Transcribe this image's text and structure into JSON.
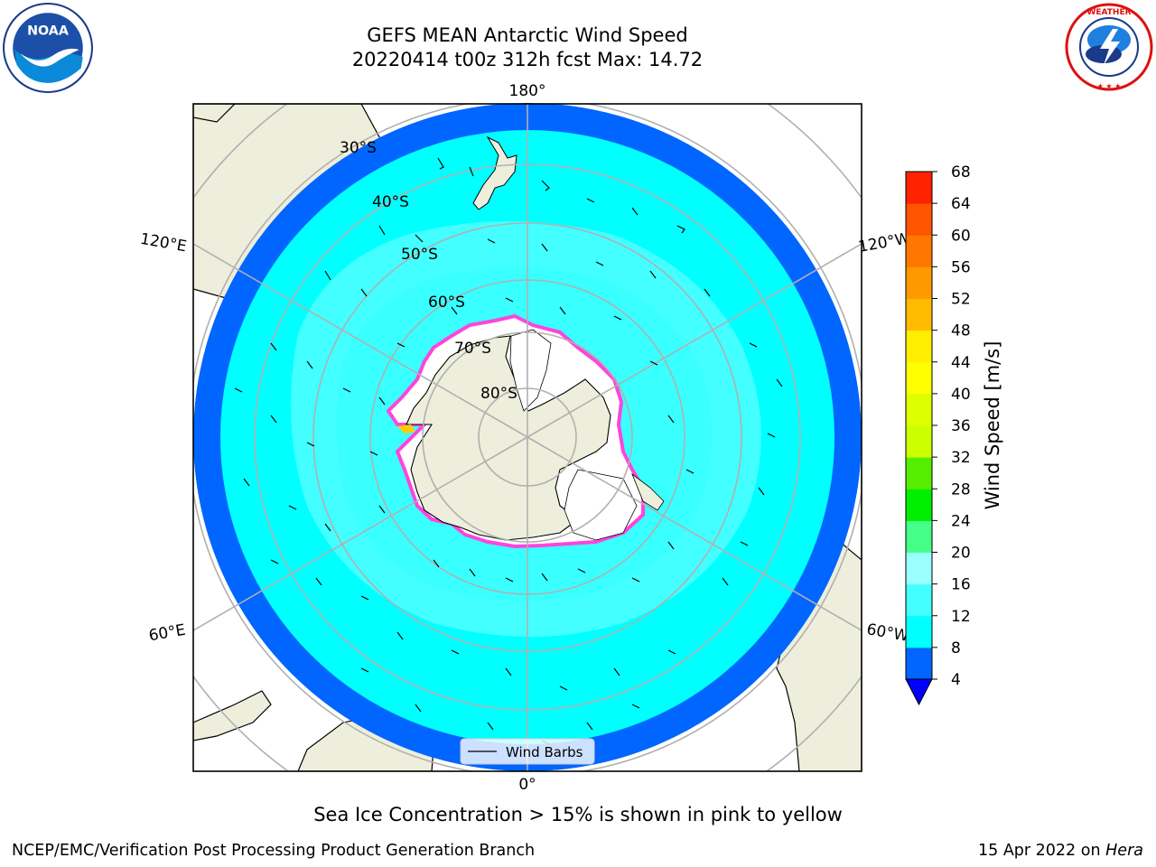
{
  "header": {
    "title_line1": "GEFS MEAN Antarctic Wind Speed",
    "title_line2": "20220414 t00z 312h fcst   Max: 14.72"
  },
  "logos": {
    "left": "noaa-logo",
    "right": "national-weather-service-logo",
    "left_text": "NOAA",
    "right_text": "NATIONAL WEATHER SERVICE"
  },
  "map": {
    "projection": "south-polar-stereographic",
    "longitude_labels": [
      "180°",
      "120°E",
      "120°W",
      "60°E",
      "60°W",
      "0°"
    ],
    "latitude_labels": [
      "30°S",
      "40°S",
      "50°S",
      "60°S",
      "70°S",
      "80°S"
    ],
    "legend_label": "Wind Barbs",
    "colors": {
      "land": "#eeeedc",
      "ice": "#ffffff",
      "ice_edge": [
        "#ff44dd",
        "#ffcc00"
      ],
      "grid": "#b0b0b0"
    }
  },
  "colorbar": {
    "label": "Wind Speed [m/s]",
    "ticks": [
      "4",
      "8",
      "12",
      "16",
      "20",
      "24",
      "28",
      "32",
      "36",
      "40",
      "44",
      "48",
      "52",
      "56",
      "60",
      "64",
      "68"
    ],
    "colors": [
      "#0066ff",
      "#00ffff",
      "#44ffff",
      "#99ffff",
      "#44ff88",
      "#00ee00",
      "#55ee00",
      "#ccff00",
      "#ddff00",
      "#ffff00",
      "#ffee00",
      "#ffbb00",
      "#ff9900",
      "#ff7700",
      "#ff5500",
      "#ff2200",
      "#ff0000"
    ],
    "under_color": "#0000ff"
  },
  "caption": "Sea Ice Concentration > 15% is shown in pink to yellow",
  "footer": {
    "left": "NCEP/EMC/Verification Post Processing Product Generation Branch",
    "right_date": "15 Apr 2022 on",
    "right_machine": "Hera"
  }
}
